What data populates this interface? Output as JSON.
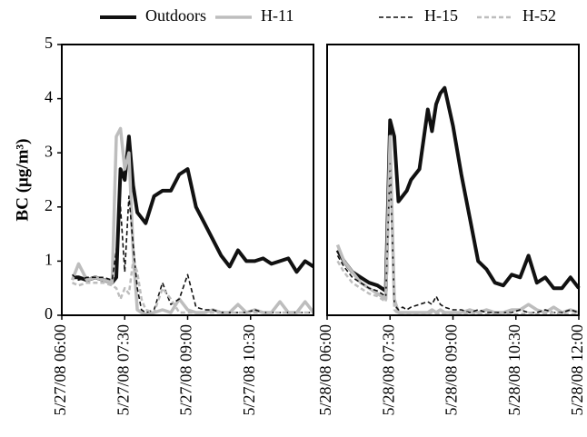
{
  "chart_data": [
    {
      "type": "line",
      "ylabel": "BC (μg/m³)",
      "x": [
        6.25,
        6.4,
        6.6,
        6.8,
        7.0,
        7.2,
        7.3,
        7.4,
        7.5,
        7.6,
        7.7,
        7.8,
        7.9,
        8.0,
        8.2,
        8.4,
        8.6,
        8.8,
        9.0,
        9.2,
        9.4,
        9.6,
        9.8,
        10.0,
        10.2,
        10.4,
        10.6,
        10.8,
        11.0,
        11.2,
        11.4,
        11.6,
        11.8,
        12.0
      ],
      "xlim": [
        6,
        12
      ],
      "xticks": [
        {
          "value": 6,
          "label": "5/27/08 06:00"
        },
        {
          "value": 7.5,
          "label": "5/27/08 07:30"
        },
        {
          "value": 9,
          "label": "5/27/08 09:00"
        },
        {
          "value": 10.5,
          "label": "5/27/08 10:30"
        }
      ],
      "ylim": [
        0,
        5
      ],
      "yticks": [
        0,
        1,
        2,
        3,
        4,
        5
      ],
      "series": [
        {
          "name": "Outdoors",
          "color": "#111111",
          "line_width": 4,
          "dashed": false,
          "values": [
            0.7,
            0.7,
            0.65,
            0.7,
            0.65,
            0.6,
            0.7,
            2.7,
            2.5,
            3.3,
            2.4,
            1.9,
            1.8,
            1.7,
            2.2,
            2.3,
            2.3,
            2.6,
            2.7,
            2.0,
            1.7,
            1.4,
            1.1,
            0.9,
            1.2,
            1.0,
            1.0,
            1.05,
            0.95,
            1.0,
            1.05,
            0.8,
            1.0,
            0.9
          ]
        },
        {
          "name": "H-11",
          "color": "#bdbdbd",
          "line_width": 3.5,
          "dashed": false,
          "values": [
            0.65,
            0.95,
            0.65,
            0.7,
            0.65,
            0.6,
            3.3,
            3.45,
            2.7,
            3.0,
            1.2,
            0.1,
            0.05,
            0.02,
            0.05,
            0.1,
            0.05,
            0.3,
            0.1,
            0.05,
            0.05,
            0.1,
            0.05,
            0.05,
            0.2,
            0.05,
            0.1,
            0.05,
            0.05,
            0.25,
            0.05,
            0.05,
            0.25,
            0.05
          ]
        },
        {
          "name": "H-15",
          "color": "#111111",
          "line_width": 1.6,
          "dashed": true,
          "values": [
            0.75,
            0.65,
            0.7,
            0.7,
            0.7,
            0.65,
            1.2,
            2.0,
            0.8,
            2.2,
            1.3,
            0.5,
            0.1,
            0.05,
            0.1,
            0.6,
            0.2,
            0.3,
            0.75,
            0.15,
            0.1,
            0.1,
            0.05,
            0.05,
            0.05,
            0.05,
            0.1,
            0.05,
            0.05,
            0.05,
            0.05,
            0.05,
            0.05,
            0.05
          ]
        },
        {
          "name": "H-52",
          "color": "#bdbdbd",
          "line_width": 2.5,
          "dashed": true,
          "values": [
            0.6,
            0.55,
            0.6,
            0.6,
            0.6,
            0.55,
            0.5,
            0.3,
            0.5,
            0.4,
            1.0,
            0.8,
            0.3,
            0.1,
            0.05,
            0.5,
            0.3,
            0.05,
            0.05,
            0.05,
            0.05,
            0.05,
            0.05,
            0.05,
            0.05,
            0.05,
            0.05,
            0.05,
            0.05,
            0.05,
            0.05,
            0.05,
            0.05,
            0.05
          ]
        }
      ]
    },
    {
      "type": "line",
      "x": [
        6.25,
        6.4,
        6.6,
        6.8,
        7.0,
        7.2,
        7.3,
        7.4,
        7.5,
        7.6,
        7.7,
        7.8,
        7.9,
        8.0,
        8.2,
        8.4,
        8.5,
        8.6,
        8.7,
        8.8,
        9.0,
        9.2,
        9.4,
        9.6,
        9.8,
        10.0,
        10.2,
        10.4,
        10.6,
        10.8,
        11.0,
        11.2,
        11.4,
        11.6,
        11.8,
        12.0
      ],
      "xlim": [
        6,
        12
      ],
      "xticks": [
        {
          "value": 6,
          "label": "5/28/08 06:00"
        },
        {
          "value": 7.5,
          "label": "5/28/08 07:30"
        },
        {
          "value": 9,
          "label": "5/28/08 09:00"
        },
        {
          "value": 10.5,
          "label": "5/28/08 10:30"
        },
        {
          "value": 12,
          "label": "5/28/08 12:00"
        }
      ],
      "ylim": [
        0,
        5
      ],
      "series": [
        {
          "color": "#111111",
          "line_width": 4,
          "dashed": false,
          "values": [
            1.2,
            1.0,
            0.8,
            0.7,
            0.6,
            0.55,
            0.5,
            0.45,
            3.6,
            3.3,
            2.1,
            2.2,
            2.3,
            2.5,
            2.7,
            3.8,
            3.4,
            3.9,
            4.1,
            4.2,
            3.5,
            2.6,
            1.8,
            1.0,
            0.85,
            0.6,
            0.55,
            0.75,
            0.7,
            1.1,
            0.6,
            0.7,
            0.5,
            0.5,
            0.7,
            0.5
          ]
        },
        {
          "color": "#bdbdbd",
          "line_width": 3.5,
          "dashed": false,
          "values": [
            1.3,
            1.0,
            0.8,
            0.6,
            0.5,
            0.4,
            0.35,
            0.3,
            3.3,
            0.3,
            0.05,
            0.05,
            0.05,
            0.05,
            0.05,
            0.05,
            0.1,
            0.05,
            0.1,
            0.05,
            0.05,
            0.05,
            0.1,
            0.05,
            0.1,
            0.05,
            0.05,
            0.1,
            0.1,
            0.2,
            0.1,
            0.05,
            0.15,
            0.05,
            0.1,
            0.05
          ]
        },
        {
          "color": "#111111",
          "line_width": 1.6,
          "dashed": true,
          "values": [
            1.1,
            0.9,
            0.7,
            0.6,
            0.5,
            0.45,
            0.4,
            0.35,
            2.8,
            0.2,
            0.1,
            0.15,
            0.1,
            0.15,
            0.2,
            0.25,
            0.2,
            0.35,
            0.2,
            0.15,
            0.1,
            0.1,
            0.05,
            0.1,
            0.05,
            0.05,
            0.05,
            0.05,
            0.1,
            0.05,
            0.05,
            0.1,
            0.05,
            0.05,
            0.1,
            0.05
          ]
        },
        {
          "color": "#bdbdbd",
          "line_width": 2.5,
          "dashed": true,
          "values": [
            1.0,
            0.8,
            0.6,
            0.5,
            0.4,
            0.35,
            0.3,
            0.25,
            3.0,
            0.1,
            0.02,
            0.02,
            0.02,
            0.02,
            0.02,
            0.02,
            0.05,
            0.02,
            0.05,
            0.02,
            0.02,
            0.02,
            0.05,
            0.02,
            0.02,
            0.02,
            0.05,
            0.02,
            0.02,
            0.05,
            0.02,
            0.02,
            0.05,
            0.02,
            0.02,
            0.02
          ]
        }
      ]
    }
  ]
}
